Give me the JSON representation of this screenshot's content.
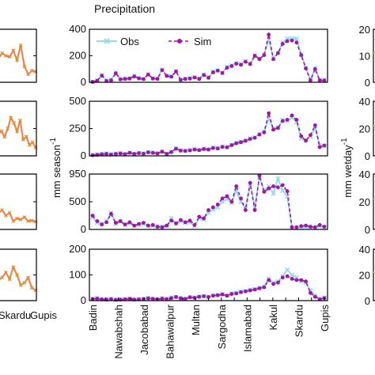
{
  "chart_data": {
    "type": "line",
    "title": "Precipitation",
    "stations": [
      "Badin",
      "",
      "Nawabshah",
      "",
      "Jacobabad",
      "",
      "Bahawalpur",
      "",
      "Multan",
      "",
      "Sargodha",
      "",
      "Islamabad",
      "",
      "Kakul",
      "",
      "Skardu",
      "",
      "Gupis"
    ],
    "left_partial_ticks": [
      "Skardu",
      "Gupis"
    ],
    "left_ylabel": "mm season",
    "left_ylabel_sup": "-1",
    "right_ylabel": "mm wetday",
    "right_ylabel_sup": "-1",
    "legend": [
      {
        "label": "Obs",
        "color": "#9ad9ec"
      },
      {
        "label": "Sim",
        "color": "#a0189f"
      }
    ],
    "colors": {
      "obs": "#9ad9ec",
      "sim": "#a0189f",
      "left_obs": "#f2a0b8",
      "left_sim": "#e08a2a",
      "right_line": "#c8d08a"
    },
    "panels": [
      {
        "yticks": [
          "400",
          "200",
          "0"
        ],
        "ylim": [
          0,
          400
        ],
        "obs": [
          3,
          15,
          55,
          12,
          20,
          72,
          25,
          28,
          30,
          48,
          32,
          26,
          62,
          30,
          28,
          95,
          50,
          45,
          85,
          20,
          28,
          30,
          40,
          28,
          58,
          36,
          80,
          90,
          72,
          115,
          128,
          145,
          138,
          160,
          140,
          205,
          178,
          210,
          320,
          182,
          225,
          300,
          330,
          330,
          330,
          210,
          110,
          18,
          105,
          18,
          18
        ],
        "sim": [
          3,
          12,
          50,
          10,
          15,
          68,
          22,
          25,
          28,
          44,
          30,
          24,
          58,
          28,
          26,
          92,
          48,
          42,
          82,
          18,
          25,
          28,
          36,
          25,
          55,
          34,
          75,
          88,
          70,
          110,
          122,
          140,
          132,
          155,
          138,
          200,
          175,
          205,
          360,
          175,
          220,
          290,
          310,
          315,
          300,
          205,
          105,
          15,
          100,
          15,
          14
        ]
      },
      {
        "yticks": [
          "500",
          "250",
          "0"
        ],
        "ylim": [
          0,
          500
        ],
        "obs": [
          8,
          12,
          18,
          22,
          15,
          20,
          25,
          18,
          30,
          20,
          28,
          22,
          35,
          30,
          25,
          40,
          20,
          38,
          70,
          50,
          48,
          52,
          60,
          55,
          65,
          60,
          75,
          70,
          85,
          80,
          100,
          120,
          130,
          140,
          160,
          170,
          200,
          220,
          340,
          250,
          260,
          330,
          320,
          350,
          310,
          160,
          140,
          180,
          250,
          100,
          90
        ],
        "sim": [
          6,
          10,
          15,
          18,
          12,
          18,
          22,
          15,
          28,
          18,
          25,
          20,
          32,
          28,
          22,
          38,
          18,
          35,
          65,
          48,
          45,
          50,
          58,
          52,
          62,
          58,
          72,
          68,
          82,
          78,
          98,
          115,
          125,
          138,
          155,
          165,
          195,
          215,
          390,
          240,
          255,
          320,
          330,
          370,
          330,
          180,
          140,
          190,
          280,
          80,
          95
        ]
      },
      {
        "yticks": [
          "950",
          "500",
          "0"
        ],
        "ylim": [
          0,
          1000
        ],
        "obs": [
          220,
          120,
          100,
          150,
          300,
          100,
          140,
          80,
          110,
          60,
          90,
          100,
          60,
          70,
          40,
          50,
          60,
          200,
          100,
          150,
          120,
          130,
          60,
          200,
          180,
          300,
          360,
          400,
          500,
          550,
          480,
          700,
          500,
          380,
          820,
          400,
          950,
          700,
          780,
          650,
          920,
          700,
          600,
          30,
          30,
          40,
          50,
          40,
          30,
          60,
          40
        ],
        "sim": [
          250,
          150,
          90,
          130,
          280,
          120,
          150,
          90,
          130,
          70,
          100,
          120,
          70,
          80,
          50,
          40,
          70,
          160,
          110,
          170,
          130,
          160,
          80,
          230,
          200,
          350,
          400,
          450,
          560,
          600,
          500,
          780,
          560,
          350,
          840,
          350,
          970,
          680,
          740,
          780,
          760,
          800,
          690,
          40,
          40,
          60,
          70,
          50,
          40,
          80,
          50
        ]
      },
      {
        "yticks": [
          "200",
          "100",
          "0"
        ],
        "ylim": [
          0,
          200
        ],
        "obs": [
          8,
          10,
          6,
          5,
          7,
          4,
          5,
          6,
          8,
          5,
          6,
          7,
          10,
          8,
          6,
          9,
          7,
          12,
          15,
          10,
          8,
          14,
          12,
          16,
          18,
          15,
          20,
          22,
          25,
          20,
          28,
          30,
          35,
          38,
          42,
          45,
          50,
          55,
          85,
          70,
          75,
          95,
          120,
          100,
          90,
          75,
          70,
          40,
          20,
          8,
          12
        ],
        "sim": [
          6,
          8,
          5,
          4,
          6,
          3,
          4,
          5,
          7,
          4,
          5,
          6,
          9,
          7,
          5,
          8,
          6,
          10,
          14,
          9,
          7,
          13,
          11,
          15,
          17,
          14,
          19,
          21,
          24,
          19,
          26,
          28,
          33,
          36,
          40,
          43,
          48,
          52,
          80,
          65,
          70,
          90,
          95,
          85,
          80,
          80,
          75,
          30,
          15,
          5,
          10
        ]
      }
    ]
  }
}
